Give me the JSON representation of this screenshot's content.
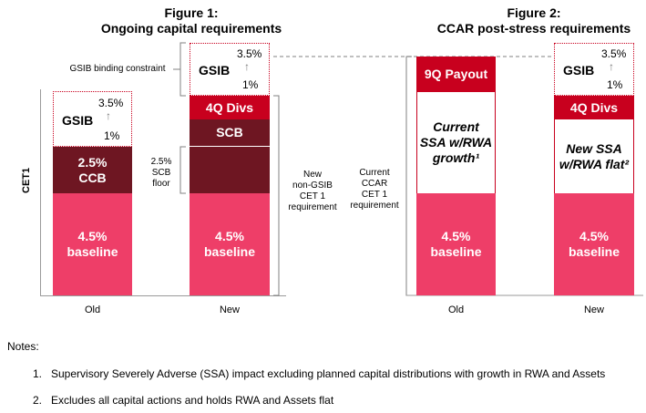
{
  "chart_data": [
    {
      "type": "bar",
      "title": "Figure 1:",
      "subtitle": "Ongoing capital requirements",
      "ylabel": "CET1",
      "categories": [
        "Old",
        "New"
      ],
      "stacked": true,
      "series": [
        {
          "name": "4.5% baseline",
          "values": [
            4.5,
            4.5
          ]
        },
        {
          "name": "2.5% CCB",
          "values": [
            2.5,
            0
          ]
        },
        {
          "name": "SCB",
          "values": [
            0,
            2.5
          ]
        },
        {
          "name": "4Q Divs",
          "values": [
            0,
            1
          ]
        },
        {
          "name": "GSIB",
          "values": [
            2.25,
            2.25
          ]
        }
      ]
    },
    {
      "type": "bar",
      "title": "Figure 2:",
      "subtitle": "CCAR post-stress requirements",
      "categories": [
        "Old",
        "New"
      ],
      "stacked": true,
      "series": [
        {
          "name": "4.5% baseline",
          "values": [
            4.5,
            4.5
          ]
        },
        {
          "name": "Current SSA w/RWA growth",
          "values": [
            3.5,
            0
          ]
        },
        {
          "name": "New SSA w/RWA flat",
          "values": [
            0,
            3.5
          ]
        },
        {
          "name": "9Q Payout",
          "values": [
            1.5,
            0
          ]
        },
        {
          "name": "4Q Divs",
          "values": [
            0,
            1
          ]
        },
        {
          "name": "GSIB",
          "values": [
            0,
            2.25
          ]
        }
      ]
    }
  ],
  "fig1": {
    "title": "Figure 1:",
    "subtitle": "Ongoing capital requirements",
    "ylabel": "CET1",
    "old": {
      "label": "Old",
      "baseline_pct": "4.5%",
      "baseline": "baseline",
      "ccb_pct": "2.5%",
      "ccb": "CCB",
      "gsib": "GSIB",
      "gsib_high": "3.5%",
      "gsib_low": "1%"
    },
    "new": {
      "label": "New",
      "baseline_pct": "4.5%",
      "baseline": "baseline",
      "scb": "SCB",
      "divs": "4Q Divs",
      "gsib": "GSIB",
      "gsib_high": "3.5%",
      "gsib_low": "1%"
    },
    "gsib_binding": "GSIB binding constraint",
    "scb_floor": [
      "2.5%",
      "SCB",
      "floor"
    ],
    "new_req": [
      "New",
      "non-GSIB",
      "CET 1",
      "requirement"
    ]
  },
  "fig2": {
    "title": "Figure 2:",
    "subtitle": "CCAR post-stress requirements",
    "old": {
      "label": "Old",
      "baseline_pct": "4.5%",
      "baseline": "baseline",
      "ssa": [
        "Current",
        "SSA w/RWA",
        "growth¹"
      ],
      "payout": "9Q Payout"
    },
    "new": {
      "label": "New",
      "baseline_pct": "4.5%",
      "baseline": "baseline",
      "ssa": [
        "New SSA",
        "w/RWA flat²"
      ],
      "divs": "4Q Divs",
      "gsib": "GSIB",
      "gsib_high": "3.5%",
      "gsib_low": "1%"
    },
    "current_req": [
      "Current",
      "CCAR",
      "CET 1",
      "requirement"
    ]
  },
  "notes": {
    "heading": "Notes:",
    "items": [
      {
        "num": "1.",
        "text": "Supervisory Severely Adverse (SSA) impact excluding planned capital distributions with growth in RWA and Assets"
      },
      {
        "num": "2.",
        "text": "Excludes all capital actions and holds RWA and Assets flat"
      }
    ]
  },
  "colors": {
    "pink": "#ee3e68",
    "maroon": "#6e1622",
    "red": "#c8001e",
    "bracket": "#808080"
  }
}
